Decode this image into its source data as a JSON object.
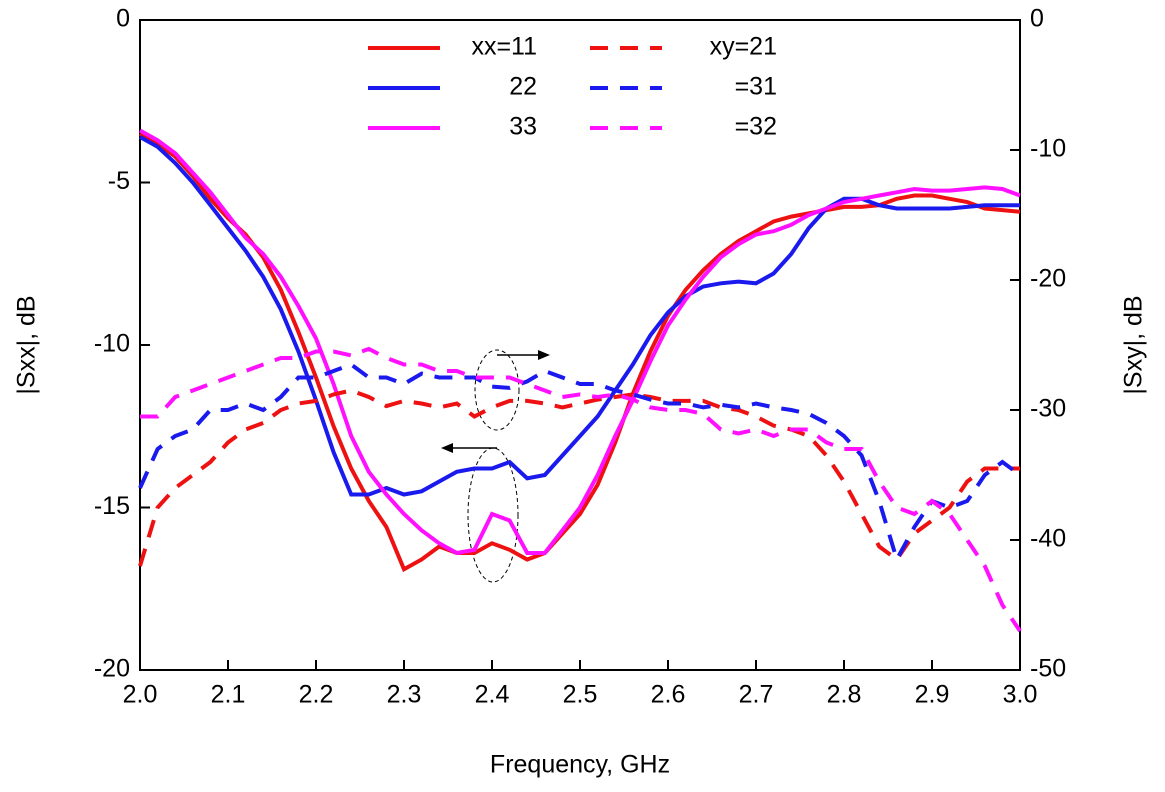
{
  "chart_data": {
    "type": "line",
    "xlabel": "Frequency, GHz",
    "ylabel": "|Sxx|, dB",
    "y2label": "|Sxy|, dB",
    "x": [
      2.0,
      2.02,
      2.04,
      2.06,
      2.08,
      2.1,
      2.12,
      2.14,
      2.16,
      2.18,
      2.2,
      2.22,
      2.24,
      2.26,
      2.28,
      2.3,
      2.32,
      2.34,
      2.36,
      2.38,
      2.4,
      2.42,
      2.44,
      2.46,
      2.48,
      2.5,
      2.52,
      2.54,
      2.56,
      2.58,
      2.6,
      2.62,
      2.64,
      2.66,
      2.68,
      2.7,
      2.72,
      2.74,
      2.76,
      2.78,
      2.8,
      2.82,
      2.84,
      2.86,
      2.88,
      2.9,
      2.92,
      2.94,
      2.96,
      2.98,
      3.0
    ],
    "xlim": [
      2,
      3
    ],
    "xticks": [
      {
        "value": 2,
        "label": "2.0"
      },
      2.1,
      2.2,
      2.3,
      2.4,
      2.5,
      2.6,
      2.7,
      2.8,
      2.9,
      {
        "value": 3,
        "label": "3.0"
      }
    ],
    "ylim": [
      -20,
      0
    ],
    "yticks": [
      0,
      -5,
      -10,
      -15,
      -20
    ],
    "y2lim": [
      -50,
      0
    ],
    "y2ticks": [
      0,
      -10,
      -20,
      -30,
      -40,
      -50
    ],
    "series": [
      {
        "name": "xx=11",
        "color": "#ee1111",
        "dash": false,
        "values": [
          -3.5,
          -3.8,
          -4.2,
          -4.8,
          -5.5,
          -6.1,
          -6.6,
          -7.3,
          -8.3,
          -9.6,
          -11.0,
          -12.5,
          -13.8,
          -14.8,
          -15.6,
          -16.9,
          -16.6,
          -16.2,
          -16.4,
          -16.4,
          -16.1,
          -16.3,
          -16.6,
          -16.4,
          -15.8,
          -15.2,
          -14.3,
          -13.0,
          -11.5,
          -10.2,
          -9.1,
          -8.3,
          -7.7,
          -7.2,
          -6.8,
          -6.5,
          -6.2,
          -6.05,
          -5.95,
          -5.85,
          -5.75,
          -5.75,
          -5.7,
          -5.5,
          -5.4,
          -5.4,
          -5.5,
          -5.6,
          -5.8,
          -5.85,
          -5.9
        ]
      },
      {
        "name": "22",
        "color": "#1a1aee",
        "dash": false,
        "values": [
          -3.6,
          -3.9,
          -4.4,
          -5.0,
          -5.7,
          -6.4,
          -7.1,
          -7.9,
          -8.9,
          -10.2,
          -11.7,
          -13.3,
          -14.6,
          -14.6,
          -14.4,
          -14.6,
          -14.5,
          -14.2,
          -13.9,
          -13.8,
          -13.8,
          -13.6,
          -14.1,
          -14.0,
          -13.4,
          -12.8,
          -12.2,
          -11.4,
          -10.6,
          -9.7,
          -9.0,
          -8.5,
          -8.2,
          -8.1,
          -8.05,
          -8.1,
          -7.8,
          -7.2,
          -6.4,
          -5.8,
          -5.5,
          -5.5,
          -5.7,
          -5.8,
          -5.8,
          -5.8,
          -5.8,
          -5.75,
          -5.7,
          -5.7,
          -5.7
        ]
      },
      {
        "name": "33",
        "color": "#ff11ff",
        "dash": false,
        "values": [
          -3.4,
          -3.7,
          -4.1,
          -4.7,
          -5.3,
          -6.0,
          -6.7,
          -7.2,
          -7.9,
          -8.8,
          -9.8,
          -11.2,
          -12.8,
          -13.9,
          -14.6,
          -15.2,
          -15.7,
          -16.1,
          -16.4,
          -16.3,
          -15.2,
          -15.4,
          -16.4,
          -16.4,
          -15.7,
          -15.0,
          -14.0,
          -12.8,
          -11.7,
          -10.5,
          -9.4,
          -8.6,
          -7.9,
          -7.3,
          -6.9,
          -6.6,
          -6.5,
          -6.3,
          -6.0,
          -5.8,
          -5.6,
          -5.5,
          -5.4,
          -5.3,
          -5.2,
          -5.25,
          -5.25,
          -5.2,
          -5.15,
          -5.2,
          -5.4
        ]
      },
      {
        "name": "xy=21",
        "color": "#ee1111",
        "dash": true,
        "axis": "y2",
        "values": [
          -42,
          -37.5,
          -36,
          -35,
          -34,
          -32.5,
          -31.5,
          -31,
          -30,
          -29.5,
          -29.3,
          -28.8,
          -28.5,
          -29,
          -29.7,
          -29.3,
          -29.5,
          -29.8,
          -29.5,
          -30.5,
          -29.8,
          -29.3,
          -29.3,
          -29.5,
          -29.8,
          -29.5,
          -29.2,
          -29,
          -28.8,
          -29,
          -29.3,
          -29.3,
          -29.3,
          -29.8,
          -30,
          -30.5,
          -31.2,
          -31.5,
          -32,
          -33.5,
          -35.5,
          -38,
          -40.5,
          -41.5,
          -39.5,
          -38.5,
          -37.5,
          -35.5,
          -34.5,
          -34.5,
          -34.5
        ]
      },
      {
        "name": "=31",
        "color": "#1a1aee",
        "dash": true,
        "axis": "y2",
        "values": [
          -36,
          -33,
          -32,
          -31.5,
          -30,
          -30,
          -29.5,
          -30,
          -29,
          -27.5,
          -27.5,
          -27,
          -26.5,
          -27.5,
          -27.5,
          -28,
          -27.2,
          -27.5,
          -27.5,
          -27.5,
          -28.2,
          -28.3,
          -27.8,
          -27,
          -27.5,
          -28,
          -28,
          -28.5,
          -28.8,
          -29.2,
          -29.5,
          -29.5,
          -29.8,
          -29.6,
          -29.8,
          -29.5,
          -29.8,
          -30,
          -30.3,
          -31,
          -32,
          -33.5,
          -37,
          -41.5,
          -39,
          -37,
          -37.5,
          -37,
          -35,
          -34,
          -35
        ]
      },
      {
        "name": "=32",
        "color": "#ff11ff",
        "dash": true,
        "axis": "y2",
        "values": [
          -30.5,
          -30.5,
          -29,
          -28.5,
          -28,
          -27.5,
          -27,
          -26.5,
          -26,
          -26,
          -25.5,
          -25.5,
          -25.8,
          -25.3,
          -26,
          -26.5,
          -26.5,
          -27,
          -27,
          -27.5,
          -27.5,
          -27.5,
          -28,
          -28.5,
          -29,
          -28.8,
          -29,
          -28.8,
          -29.2,
          -29.8,
          -30,
          -30,
          -30.3,
          -31.5,
          -31.8,
          -31.5,
          -32,
          -31.5,
          -31.5,
          -32.5,
          -33,
          -33,
          -35.5,
          -37.5,
          -38,
          -37,
          -38,
          -40,
          -42,
          -45,
          -47
        ]
      }
    ]
  }
}
